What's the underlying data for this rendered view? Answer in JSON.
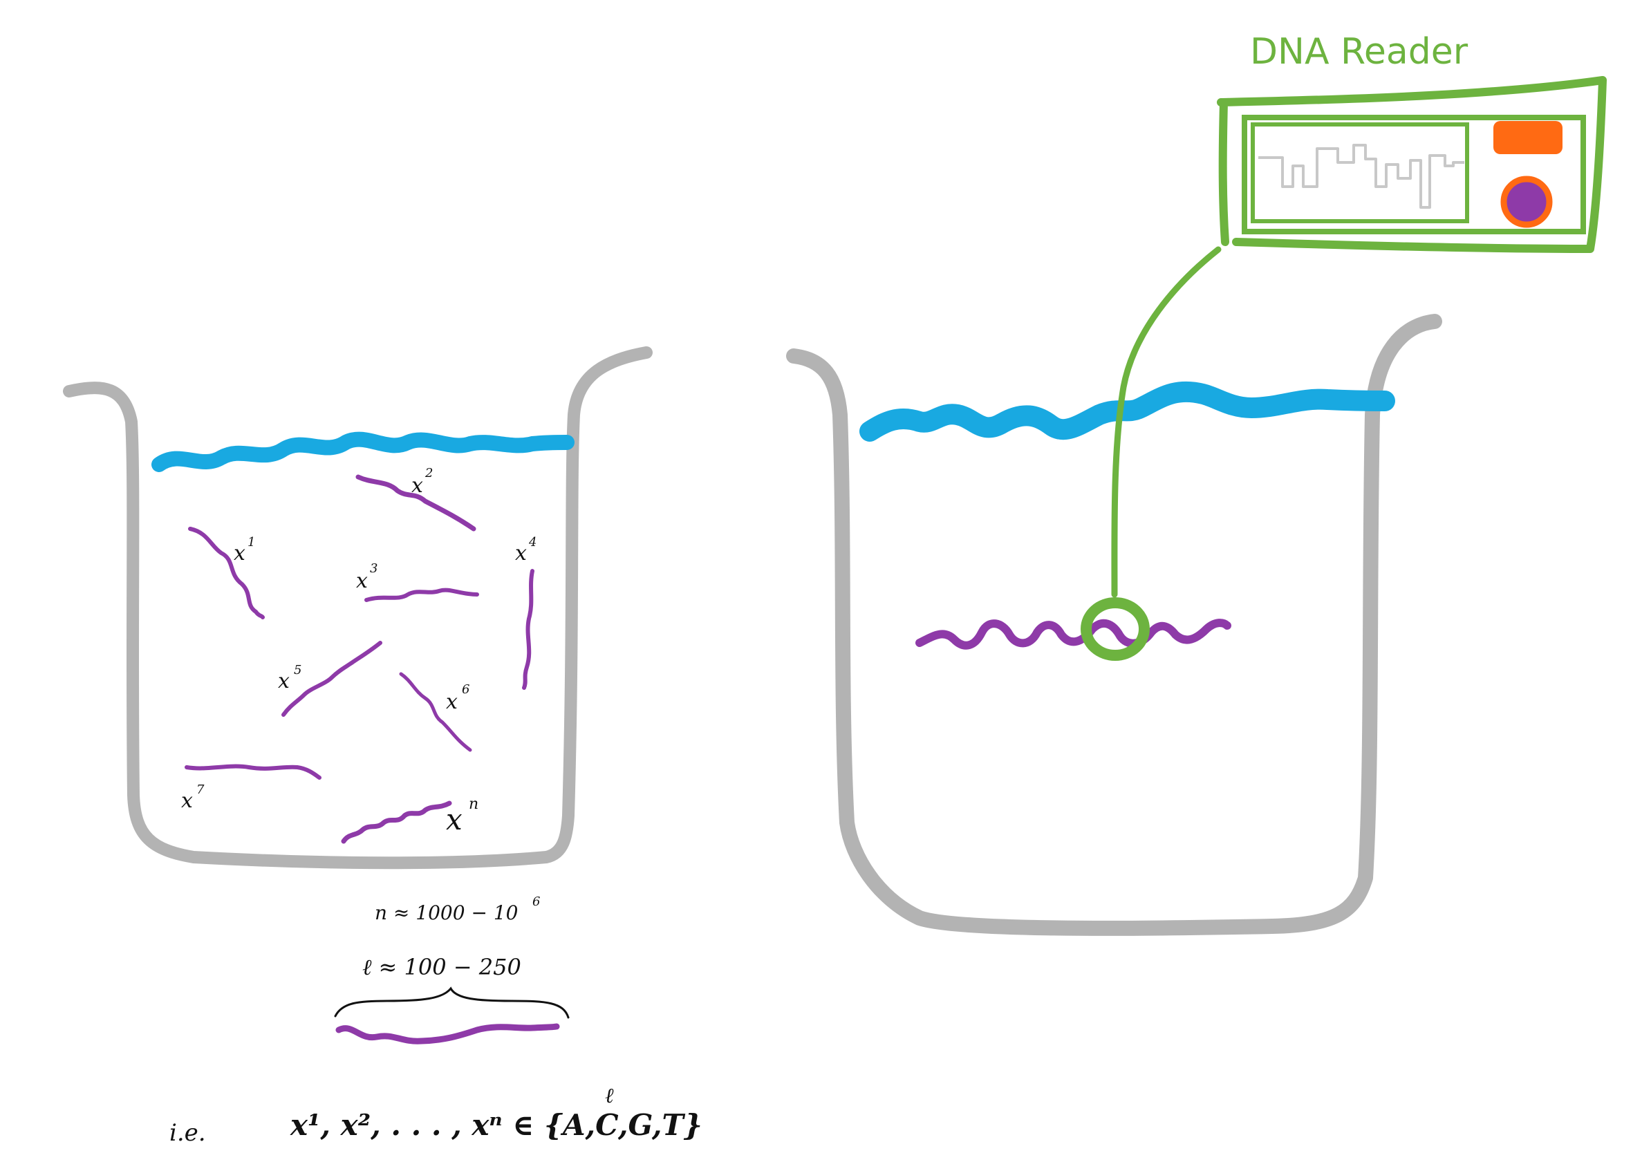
{
  "colors": {
    "beaker": "#b3b3b3",
    "water": "#19a9e1",
    "dna": "#8e3aa8",
    "reader": "#6db33f",
    "wave": "#c8c8c8",
    "button_orange": "#ff6a13",
    "button_purple": "#8e3aa8",
    "ink": "#111111"
  },
  "labels": {
    "x1": "x",
    "x1_sup": "1",
    "x2": "x",
    "x2_sup": "2",
    "x3": "x",
    "x3_sup": "3",
    "x4": "x",
    "x4_sup": "4",
    "x5": "x",
    "x5_sup": "5",
    "x6": "x",
    "x6_sup": "6",
    "x7": "x",
    "x7_sup": "7",
    "xn": "x",
    "xn_sup": "n"
  },
  "params": {
    "n_line": "n ≈ 1000 − 10",
    "n_exp": "6",
    "l_line": "ℓ ≈ 100 − 250"
  },
  "formula": {
    "ie": "i.e.",
    "main": "x¹, x², . . . , xⁿ ∈ {A,C,G,T}",
    "exp": "ℓ"
  },
  "reader": {
    "title": "DNA Reader"
  }
}
